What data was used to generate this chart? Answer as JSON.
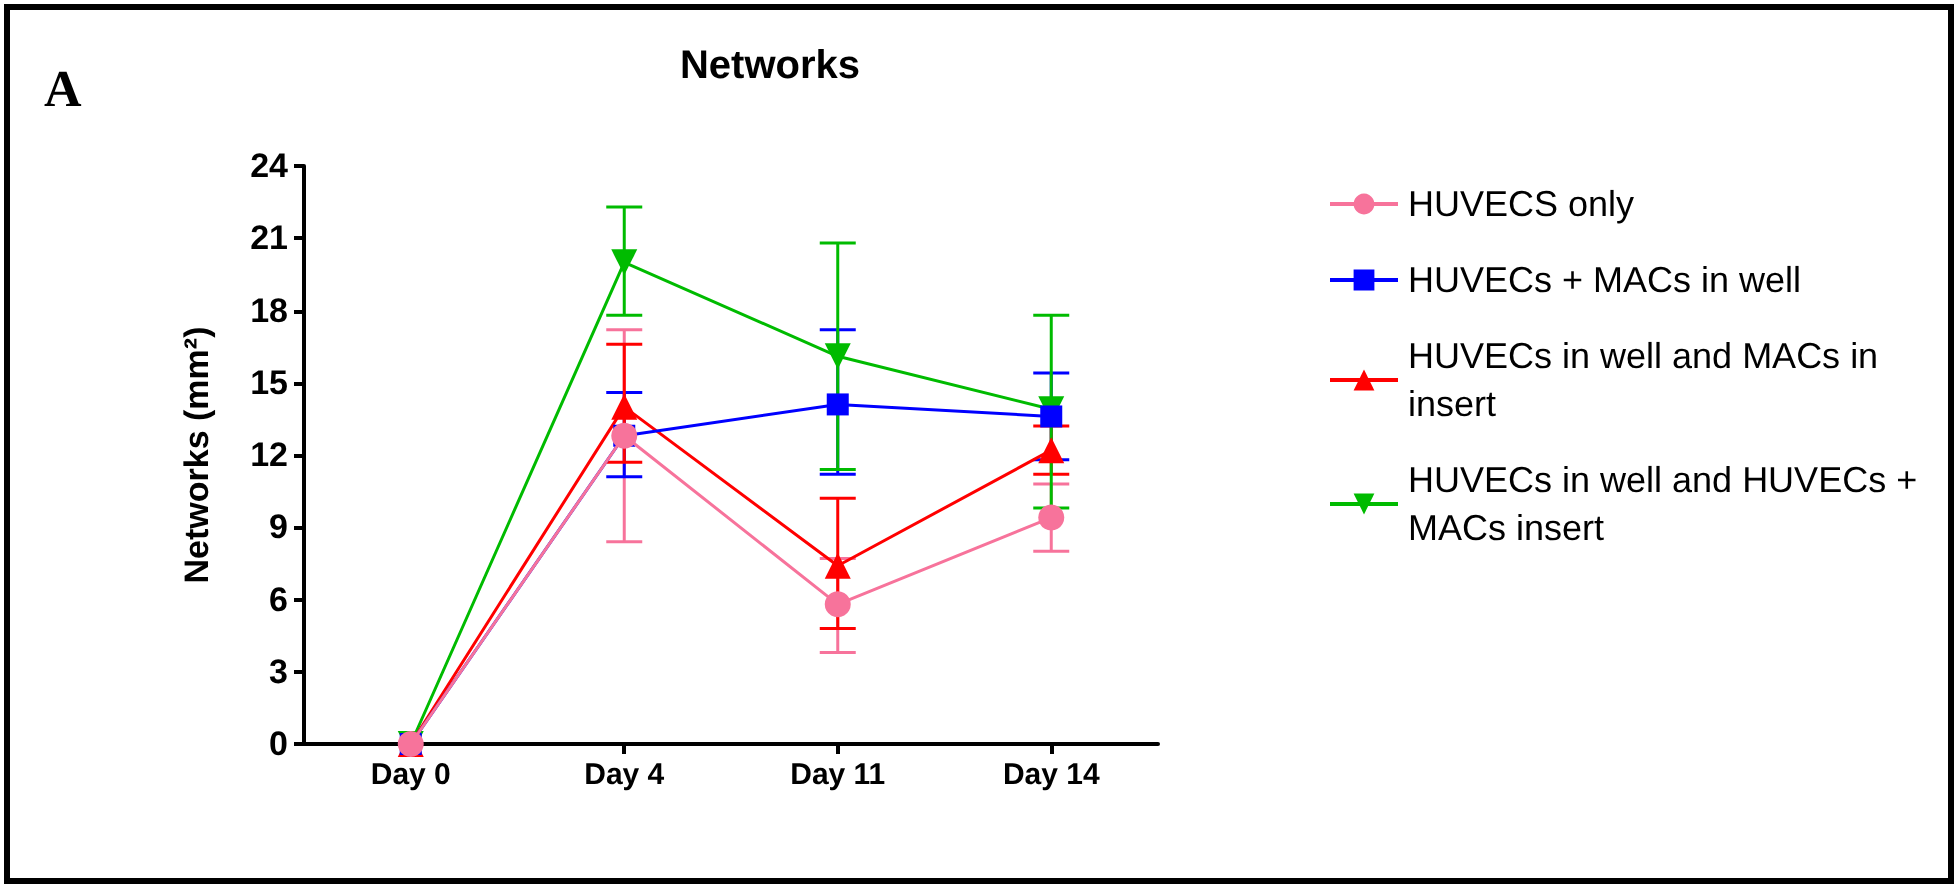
{
  "chart_data": {
    "type": "line",
    "title": "Networks",
    "ylabel": "Networks (mm²)",
    "annotations": [
      "A"
    ],
    "categories": [
      "Day 0",
      "Day 4",
      "Day 11",
      "Day 14"
    ],
    "series": [
      {
        "name": "HUVECS only",
        "color": "#f7739b",
        "marker": "circle",
        "values": [
          0,
          12.8,
          5.8,
          9.4
        ],
        "errors": [
          null,
          [
            8.4,
            17.2
          ],
          [
            3.8,
            7.7
          ],
          [
            8.0,
            10.8
          ]
        ]
      },
      {
        "name": "HUVECs + MACs in well",
        "color": "#0000ff",
        "marker": "square",
        "values": [
          0,
          12.8,
          14.1,
          13.6
        ],
        "errors": [
          null,
          [
            11.1,
            14.6
          ],
          [
            11.2,
            17.2
          ],
          [
            11.8,
            15.4
          ]
        ]
      },
      {
        "name": "HUVECs in well and MACs in insert",
        "color": "#ff0000",
        "marker": "triangle",
        "values": [
          0,
          14.0,
          7.4,
          12.2
        ],
        "errors": [
          null,
          [
            11.7,
            16.6
          ],
          [
            4.8,
            10.2
          ],
          [
            11.2,
            13.2
          ]
        ]
      },
      {
        "name": "HUVECs in well and HUVECs + MACs insert",
        "color": "#00bb00",
        "marker": "triangle-down",
        "values": [
          0,
          20.0,
          16.1,
          13.9
        ],
        "errors": [
          null,
          [
            17.8,
            22.3
          ],
          [
            11.4,
            20.8
          ],
          [
            9.8,
            17.8
          ]
        ]
      }
    ],
    "ylim": [
      0,
      24
    ],
    "yticks": [
      0,
      3,
      6,
      9,
      12,
      15,
      18,
      21,
      24
    ],
    "grid": false,
    "legend": "right"
  }
}
